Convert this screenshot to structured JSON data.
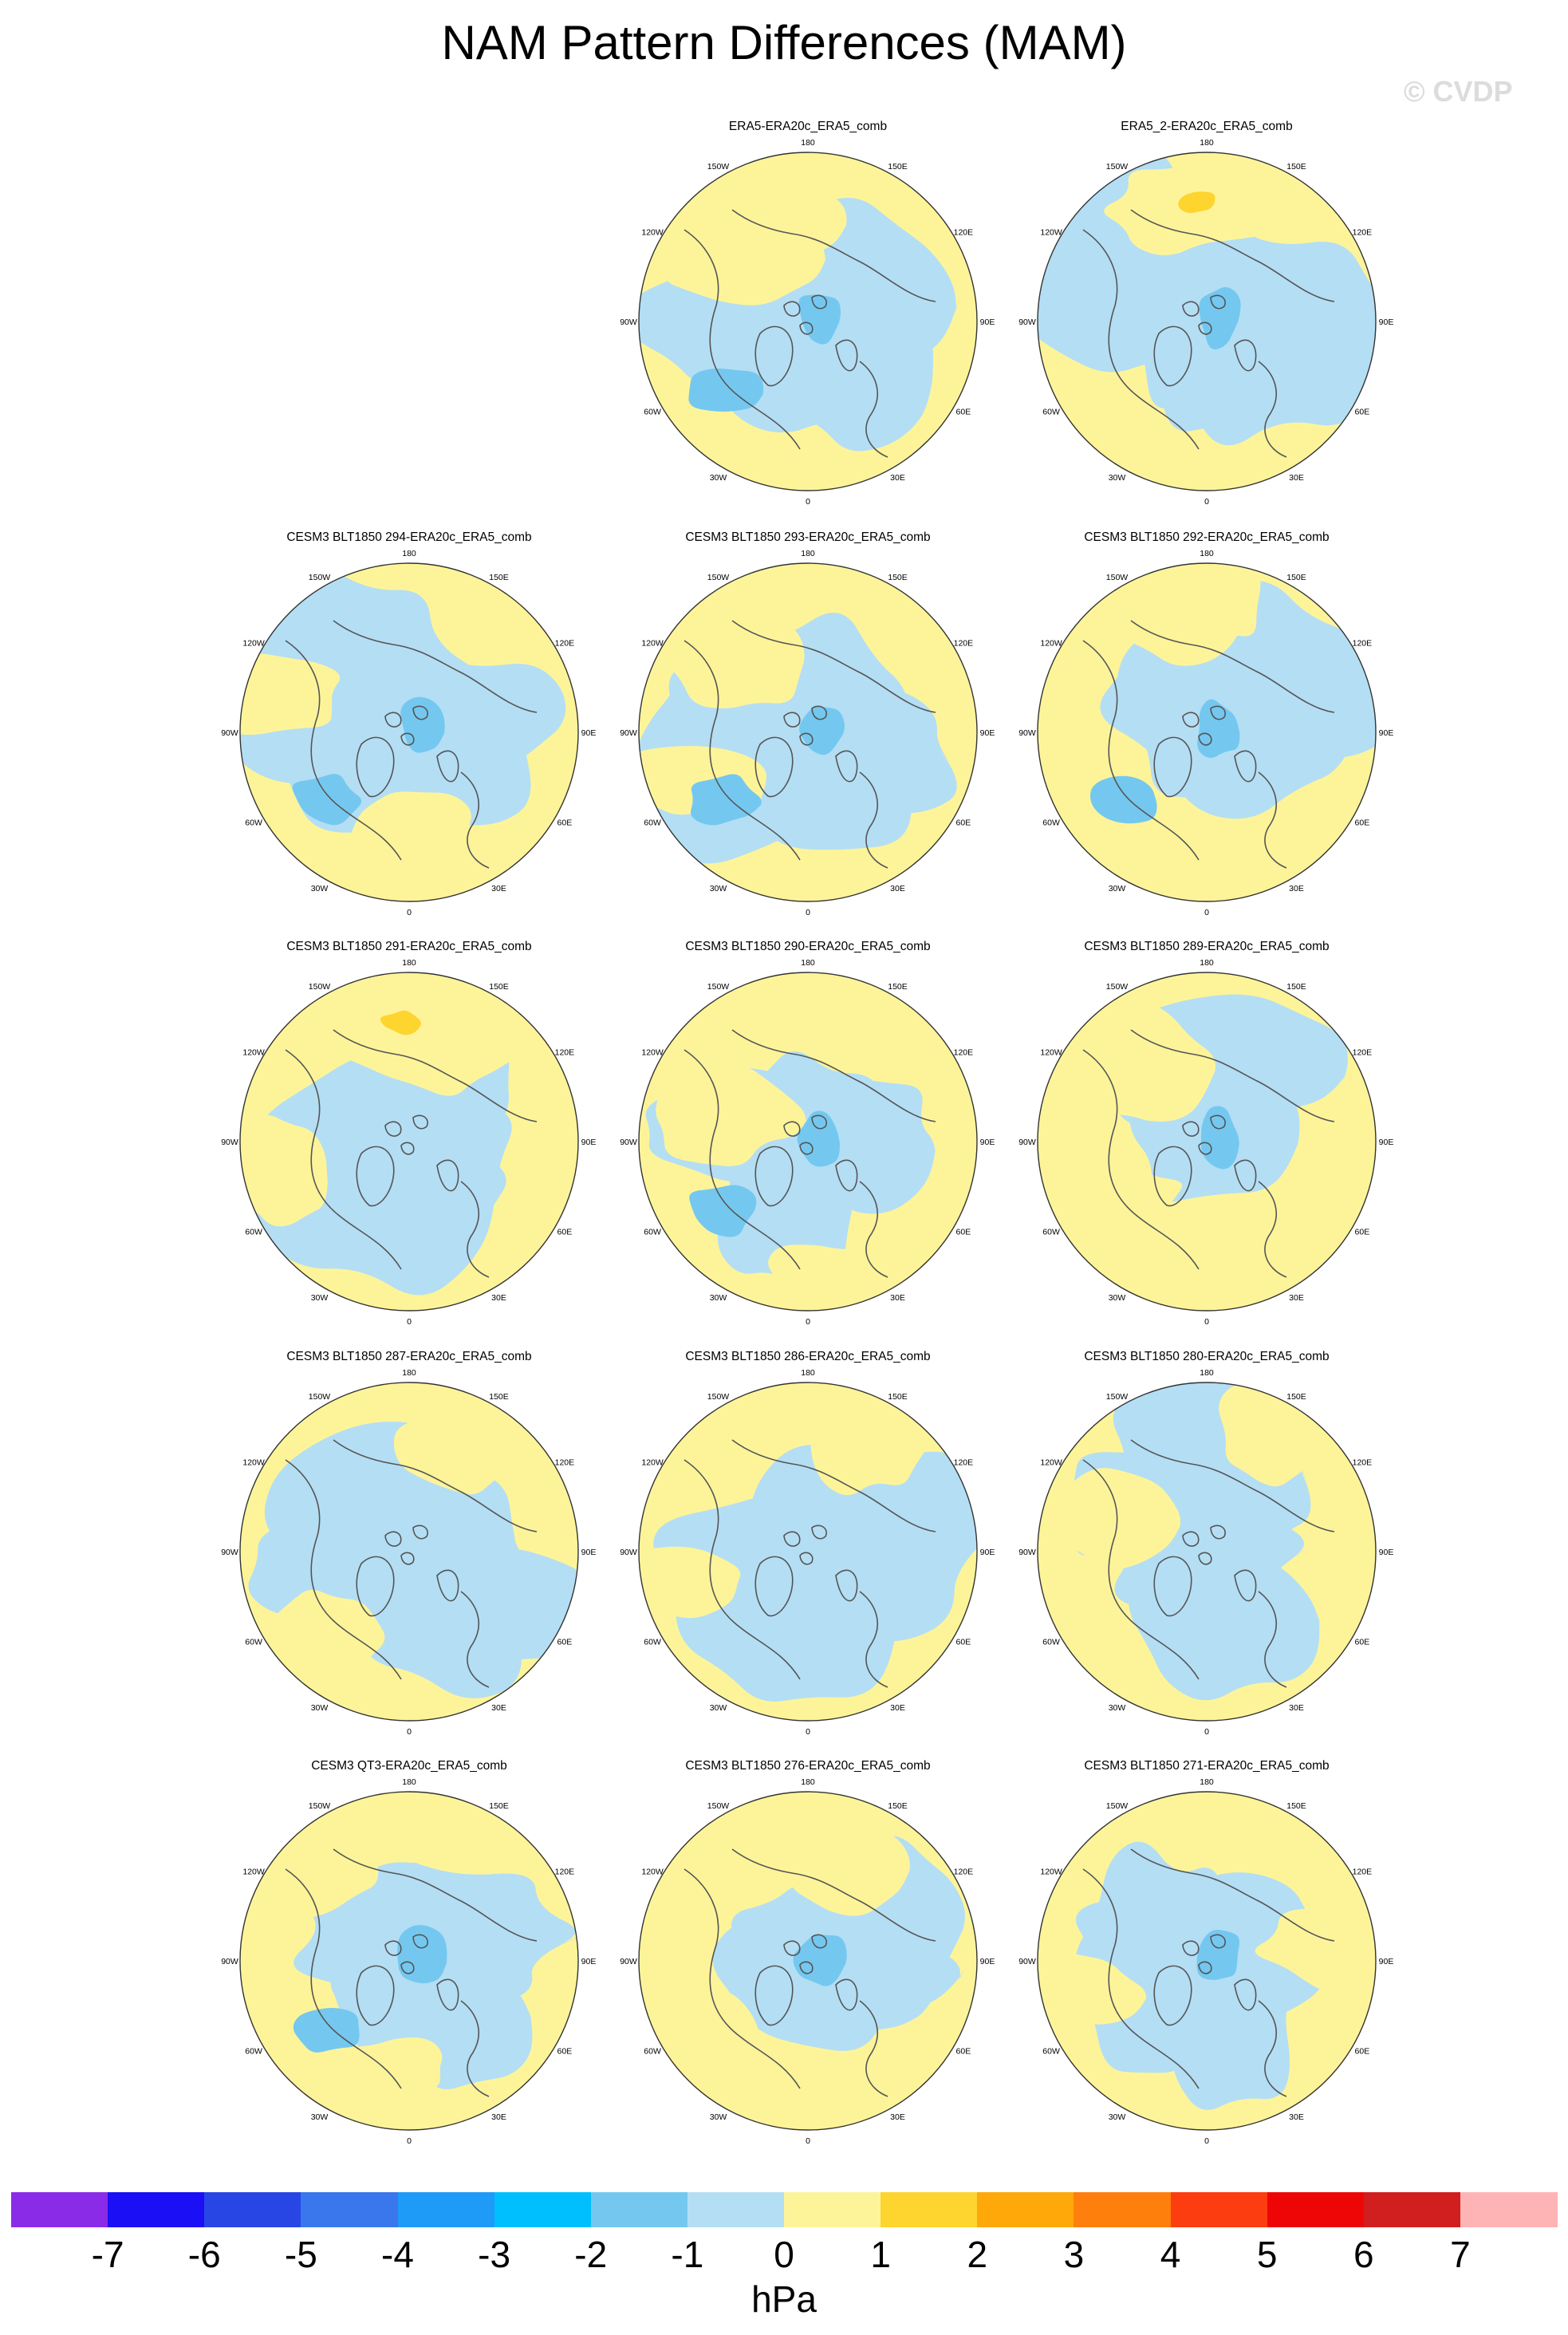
{
  "title": "NAM Pattern Differences (MAM)",
  "watermark": "© CVDP",
  "units": "hPa",
  "colors": {
    "neg7": "#8a2be8",
    "neg6": "#1a0ff5",
    "neg5": "#2846e4",
    "neg4": "#3a77ec",
    "neg3": "#1e9af7",
    "neg2": "#00bfff",
    "neg1": "#74c8f0",
    "neg0": "#b4def4",
    "pos0": "#fdf49a",
    "pos1": "#fed42e",
    "pos2": "#fea80a",
    "pos3": "#fe7f0b",
    "pos4": "#fc3d0f",
    "pos5": "#ee0606",
    "pos6": "#d11e1e",
    "pos7": "#feb4b4",
    "coastline": "#555555"
  },
  "colorbar": {
    "labels": [
      "-7",
      "-6",
      "-5",
      "-4",
      "-3",
      "-2",
      "-1",
      "0",
      "1",
      "2",
      "3",
      "4",
      "5",
      "6",
      "7"
    ],
    "levels": [
      -7,
      -6,
      -5,
      -4,
      -3,
      -2,
      -1,
      0,
      1,
      2,
      3,
      4,
      5,
      6,
      7
    ],
    "colors": [
      "#8a2be8",
      "#1a0ff5",
      "#2846e4",
      "#3a77ec",
      "#1e9af7",
      "#00bfff",
      "#74c8f0",
      "#b4def4",
      "#fdf49a",
      "#fed42e",
      "#fea80a",
      "#fe7f0b",
      "#fc3d0f",
      "#ee0606",
      "#d11e1e",
      "#feb4b4"
    ]
  },
  "longitude_labels": [
    "180",
    "150E",
    "120E",
    "90E",
    "60E",
    "30E",
    "0",
    "30W",
    "60W",
    "90W",
    "120W",
    "150W"
  ],
  "projection": "north-polar-stereographic",
  "panels": [
    {
      "title": "ERA5-ERA20c_ERA5_comb",
      "row": 0,
      "col": 1,
      "seed": 11
    },
    {
      "title": "ERA5_2-ERA20c_ERA5_comb",
      "row": 0,
      "col": 2,
      "seed": 12
    },
    {
      "title": "CESM3 BLT1850 294-ERA20c_ERA5_comb",
      "row": 1,
      "col": 0,
      "seed": 21
    },
    {
      "title": "CESM3 BLT1850 293-ERA20c_ERA5_comb",
      "row": 1,
      "col": 1,
      "seed": 22
    },
    {
      "title": "CESM3 BLT1850 292-ERA20c_ERA5_comb",
      "row": 1,
      "col": 2,
      "seed": 23
    },
    {
      "title": "CESM3 BLT1850 291-ERA20c_ERA5_comb",
      "row": 2,
      "col": 0,
      "seed": 31
    },
    {
      "title": "CESM3 BLT1850 290-ERA20c_ERA5_comb",
      "row": 2,
      "col": 1,
      "seed": 32
    },
    {
      "title": "CESM3 BLT1850 289-ERA20c_ERA5_comb",
      "row": 2,
      "col": 2,
      "seed": 33
    },
    {
      "title": "CESM3 BLT1850 287-ERA20c_ERA5_comb",
      "row": 3,
      "col": 0,
      "seed": 41
    },
    {
      "title": "CESM3 BLT1850 286-ERA20c_ERA5_comb",
      "row": 3,
      "col": 1,
      "seed": 42
    },
    {
      "title": "CESM3 BLT1850 280-ERA20c_ERA5_comb",
      "row": 3,
      "col": 2,
      "seed": 43
    },
    {
      "title": "CESM3 QT3-ERA20c_ERA5_comb",
      "row": 4,
      "col": 0,
      "seed": 51
    },
    {
      "title": "CESM3 BLT1850 276-ERA20c_ERA5_comb",
      "row": 4,
      "col": 1,
      "seed": 52
    },
    {
      "title": "CESM3 BLT1850 271-ERA20c_ERA5_comb",
      "row": 4,
      "col": 2,
      "seed": 53
    }
  ]
}
